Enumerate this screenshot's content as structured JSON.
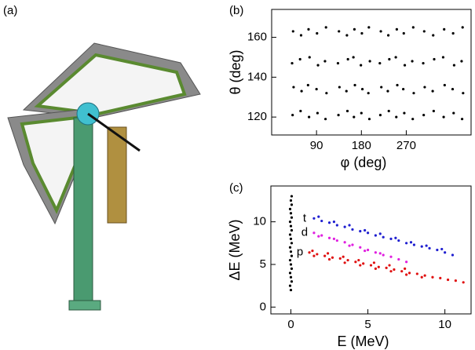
{
  "panel_a": {
    "label": "(a)"
  },
  "chart_data": [
    {
      "type": "scatter",
      "panel_label": "(b)",
      "xlabel": "φ (deg)",
      "ylabel": "θ (deg)",
      "xlim": [
        0,
        400
      ],
      "ylim": [
        111,
        174
      ],
      "xticks": [
        90,
        180,
        270
      ],
      "yticks": [
        120,
        140,
        160
      ],
      "series": [
        {
          "color": "#000000",
          "x": [
            42,
            44,
            41,
            43,
            58,
            60,
            57,
            59,
            75,
            73,
            76,
            74,
            92,
            90,
            93,
            91,
            108,
            110,
            107,
            109,
            134,
            136,
            133,
            135,
            152,
            150,
            153,
            151,
            165,
            167,
            164,
            166,
            180,
            182,
            179,
            181,
            196,
            194,
            197,
            195,
            218,
            220,
            217,
            219,
            235,
            233,
            236,
            234,
            250,
            252,
            249,
            251,
            266,
            264,
            267,
            265,
            283,
            285,
            282,
            284,
            305,
            307,
            304,
            306,
            325,
            323,
            326,
            324,
            345,
            347,
            344,
            346,
            365,
            363,
            366,
            364,
            382,
            384,
            381,
            383
          ],
          "values": [
            121,
            135,
            147,
            163,
            123,
            133,
            149,
            161,
            120,
            136,
            150,
            164,
            122,
            134,
            146,
            162,
            119,
            132,
            148,
            165,
            121,
            135,
            147,
            163,
            123,
            133,
            149,
            161,
            120,
            136,
            150,
            164,
            122,
            134,
            146,
            162,
            119,
            132,
            148,
            165,
            121,
            135,
            147,
            163,
            123,
            133,
            149,
            161,
            120,
            136,
            150,
            164,
            122,
            134,
            146,
            162,
            119,
            132,
            148,
            165,
            121,
            135,
            147,
            163,
            123,
            133,
            149,
            161,
            120,
            136,
            150,
            164,
            122,
            134,
            146,
            162,
            119,
            132,
            148,
            165
          ]
        }
      ]
    },
    {
      "type": "scatter",
      "panel_label": "(c)",
      "xlabel": "E (MeV)",
      "ylabel": "ΔE (MeV)",
      "xlim": [
        -1.3,
        11.7
      ],
      "ylim": [
        -0.8,
        14.2
      ],
      "xticks": [
        0,
        5,
        10
      ],
      "yticks": [
        0,
        5,
        10
      ],
      "series": [
        {
          "name": "t",
          "color": "#1f1fd0",
          "x": [
            1.5,
            2,
            2.5,
            3,
            3.5,
            4,
            4.5,
            5,
            5.5,
            6,
            6.5,
            7,
            7.5,
            8,
            8.5,
            9,
            9.5,
            10,
            10.5,
            1.8,
            2.8,
            3.8,
            4.8,
            5.8,
            6.8,
            7.8,
            8.8,
            9.8
          ],
          "values": [
            10.4,
            10.1,
            9.9,
            9.6,
            9.4,
            9.1,
            8.9,
            8.7,
            8.4,
            8.2,
            8.0,
            7.8,
            7.5,
            7.3,
            7.1,
            6.9,
            6.7,
            6.4,
            6.1,
            10.6,
            10.0,
            9.6,
            9.0,
            8.6,
            8.1,
            7.6,
            7.2,
            6.8
          ]
        },
        {
          "name": "d",
          "color": "#e020e0",
          "x": [
            1.5,
            2,
            2.5,
            3,
            3.5,
            4,
            4.5,
            5,
            5.5,
            6,
            6.5,
            7,
            7.5,
            1.8,
            2.8,
            3.8,
            4.8,
            5.8
          ],
          "values": [
            8.7,
            8.4,
            8.1,
            7.8,
            7.6,
            7.3,
            7.0,
            6.7,
            6.4,
            6.1,
            5.9,
            5.6,
            5.3,
            8.3,
            8.0,
            7.2,
            6.6,
            6.3
          ]
        },
        {
          "name": "p",
          "color": "#e01010",
          "x": [
            1.2,
            1.7,
            2.2,
            2.7,
            3.2,
            3.7,
            4.2,
            4.7,
            5.2,
            5.7,
            6.2,
            6.7,
            7.2,
            7.7,
            8.2,
            8.7,
            9.2,
            9.7,
            10.2,
            10.7,
            11.2,
            1.5,
            2.5,
            3.5,
            4.5,
            5.5,
            6.5,
            7.5,
            8.5,
            1.4,
            2.4,
            3.4,
            4.4,
            5.4,
            6.4,
            7.4
          ],
          "values": [
            6.4,
            6.2,
            6.0,
            5.8,
            5.7,
            5.5,
            5.3,
            5.1,
            4.9,
            4.7,
            4.6,
            4.4,
            4.2,
            4.0,
            3.9,
            3.7,
            3.5,
            3.4,
            3.2,
            3.1,
            2.9,
            6.0,
            5.6,
            5.2,
            4.9,
            4.5,
            4.2,
            3.8,
            3.5,
            6.6,
            6.3,
            5.9,
            5.5,
            5.2,
            4.9,
            4.5
          ]
        },
        {
          "color": "#000000",
          "x": [
            0,
            -0.05,
            0.05,
            0,
            -0.05,
            0.05,
            0,
            -0.05,
            0.05,
            0,
            -0.05,
            0.05,
            0,
            -0.05,
            0.05,
            0,
            -0.05,
            0.05,
            0,
            -0.05,
            0.05,
            0,
            0.05
          ],
          "values": [
            2,
            2.5,
            3,
            3.5,
            4,
            4.5,
            5,
            5.5,
            6,
            6.5,
            7,
            7.5,
            8,
            8.5,
            9,
            9.5,
            10,
            10.5,
            11,
            11.5,
            12,
            12.5,
            13
          ]
        }
      ]
    }
  ]
}
